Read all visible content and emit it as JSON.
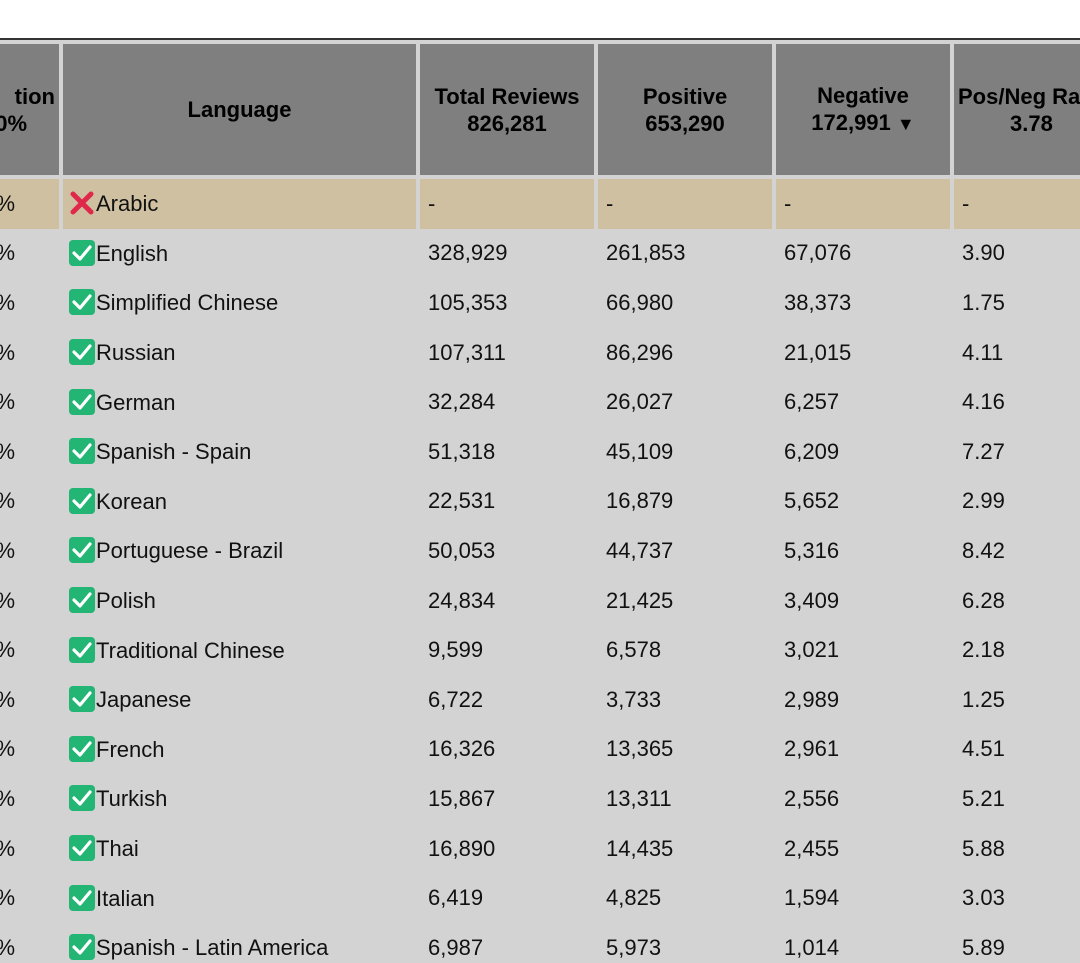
{
  "header": {
    "col_pct_line1": "tion",
    "col_pct_line2": "0%",
    "language": "Language",
    "total_label": "Total Reviews",
    "total_value": "826,281",
    "positive_label": "Positive",
    "positive_value": "653,290",
    "negative_label": "Negative",
    "negative_value": "172,991",
    "negative_sort": "▼",
    "ratio_label": "Pos/Neg Ra",
    "ratio_value": "3.78"
  },
  "colors": {
    "header_bg": "#7f7f7f",
    "row_bg": "#d3d3d3",
    "highlight_bg": "#cfc0a1",
    "check_green": "#22b573",
    "cross_red": "#e0284a"
  },
  "rows": [
    {
      "pct": "%",
      "status": "cross-icon",
      "language": "Arabic",
      "total": "-",
      "positive": "-",
      "negative": "-",
      "ratio": "-"
    },
    {
      "pct": "%",
      "status": "check-icon",
      "language": "English",
      "total": "328,929",
      "positive": "261,853",
      "negative": "67,076",
      "ratio": "3.90"
    },
    {
      "pct": "%",
      "status": "check-icon",
      "language": "Simplified Chinese",
      "total": "105,353",
      "positive": "66,980",
      "negative": "38,373",
      "ratio": "1.75"
    },
    {
      "pct": "%",
      "status": "check-icon",
      "language": "Russian",
      "total": "107,311",
      "positive": "86,296",
      "negative": "21,015",
      "ratio": "4.11"
    },
    {
      "pct": "%",
      "status": "check-icon",
      "language": "German",
      "total": "32,284",
      "positive": "26,027",
      "negative": "6,257",
      "ratio": "4.16"
    },
    {
      "pct": "%",
      "status": "check-icon",
      "language": "Spanish - Spain",
      "total": "51,318",
      "positive": "45,109",
      "negative": "6,209",
      "ratio": "7.27"
    },
    {
      "pct": "%",
      "status": "check-icon",
      "language": "Korean",
      "total": "22,531",
      "positive": "16,879",
      "negative": "5,652",
      "ratio": "2.99"
    },
    {
      "pct": "%",
      "status": "check-icon",
      "language": "Portuguese - Brazil",
      "total": "50,053",
      "positive": "44,737",
      "negative": "5,316",
      "ratio": "8.42"
    },
    {
      "pct": "%",
      "status": "check-icon",
      "language": "Polish",
      "total": "24,834",
      "positive": "21,425",
      "negative": "3,409",
      "ratio": "6.28"
    },
    {
      "pct": "%",
      "status": "check-icon",
      "language": "Traditional Chinese",
      "total": "9,599",
      "positive": "6,578",
      "negative": "3,021",
      "ratio": "2.18"
    },
    {
      "pct": "%",
      "status": "check-icon",
      "language": "Japanese",
      "total": "6,722",
      "positive": "3,733",
      "negative": "2,989",
      "ratio": "1.25"
    },
    {
      "pct": "%",
      "status": "check-icon",
      "language": "French",
      "total": "16,326",
      "positive": "13,365",
      "negative": "2,961",
      "ratio": "4.51"
    },
    {
      "pct": "%",
      "status": "check-icon",
      "language": "Turkish",
      "total": "15,867",
      "positive": "13,311",
      "negative": "2,556",
      "ratio": "5.21"
    },
    {
      "pct": "%",
      "status": "check-icon",
      "language": "Thai",
      "total": "16,890",
      "positive": "14,435",
      "negative": "2,455",
      "ratio": "5.88"
    },
    {
      "pct": "%",
      "status": "check-icon",
      "language": "Italian",
      "total": "6,419",
      "positive": "4,825",
      "negative": "1,594",
      "ratio": "3.03"
    },
    {
      "pct": "%",
      "status": "check-icon",
      "language": "Spanish - Latin America",
      "total": "6,987",
      "positive": "5,973",
      "negative": "1,014",
      "ratio": "5.89"
    }
  ]
}
